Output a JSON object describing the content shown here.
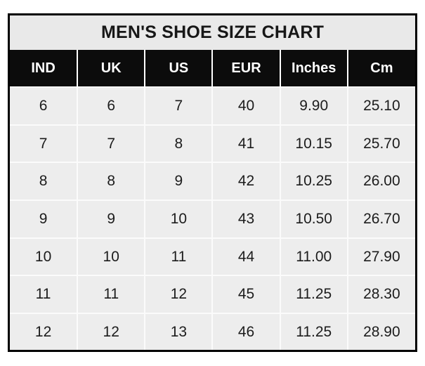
{
  "chart_data": {
    "type": "table",
    "title": "MEN'S SHOE SIZE CHART",
    "columns": [
      "IND",
      "UK",
      "US",
      "EUR",
      "Inches",
      "Cm"
    ],
    "rows": [
      [
        "6",
        "6",
        "7",
        "40",
        "9.90",
        "25.10"
      ],
      [
        "7",
        "7",
        "8",
        "41",
        "10.15",
        "25.70"
      ],
      [
        "8",
        "8",
        "9",
        "42",
        "10.25",
        "26.00"
      ],
      [
        "9",
        "9",
        "10",
        "43",
        "10.50",
        "26.70"
      ],
      [
        "10",
        "10",
        "11",
        "44",
        "11.00",
        "27.90"
      ],
      [
        "11",
        "11",
        "12",
        "45",
        "11.25",
        "28.30"
      ],
      [
        "12",
        "12",
        "13",
        "46",
        "11.25",
        "28.90"
      ]
    ],
    "layout": {
      "legend": "none",
      "grid": "white-gridlines-between-cells",
      "header_position": "top"
    }
  },
  "colors": {
    "page_bg": "#ffffff",
    "outer_border": "#000000",
    "title_bg": "#e9e9e9",
    "title_text": "#171717",
    "header_bg": "#0c0c0c",
    "header_text": "#ffffff",
    "cell_bg": "#ededed",
    "gridline": "#fbfbfb",
    "cell_text": "#1c1c1c"
  }
}
